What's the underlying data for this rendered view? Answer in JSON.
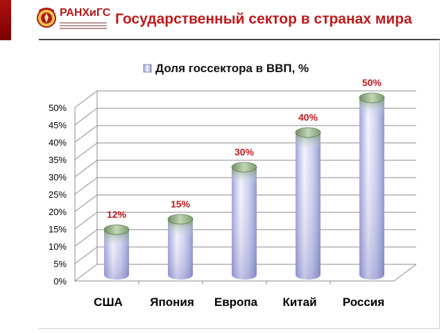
{
  "header": {
    "logo_text": "РАНХиГС",
    "title": "Государственный сектор в странах мира"
  },
  "colors": {
    "brand_red": "#c0191b",
    "bar_light": "#eef0fb",
    "bar_mid": "#c5c9ef",
    "bar_dark": "#8e92cc",
    "bar_top_dark": "#6f8f64",
    "bar_top_light": "#bfd3b0",
    "grid": "#8a8a8a"
  },
  "chart_data": {
    "type": "bar",
    "title": "",
    "categories": [
      "США",
      "Япония",
      "Европа",
      "Китай",
      "Россия"
    ],
    "series": [
      {
        "name": "Доля госсектора в ВВП, %",
        "values": [
          12,
          15,
          30,
          40,
          50
        ]
      }
    ],
    "data_labels": [
      "12%",
      "15%",
      "30%",
      "40%",
      "50%"
    ],
    "y_ticks": [
      "0%",
      "5%",
      "10%",
      "15%",
      "20%",
      "25%",
      "30%",
      "35%",
      "40%",
      "45%",
      "50%"
    ],
    "ylim": [
      0,
      50
    ],
    "xlabel": "",
    "ylabel": "",
    "grid": true,
    "legend_position": "top",
    "style": "3d-cylinder"
  }
}
